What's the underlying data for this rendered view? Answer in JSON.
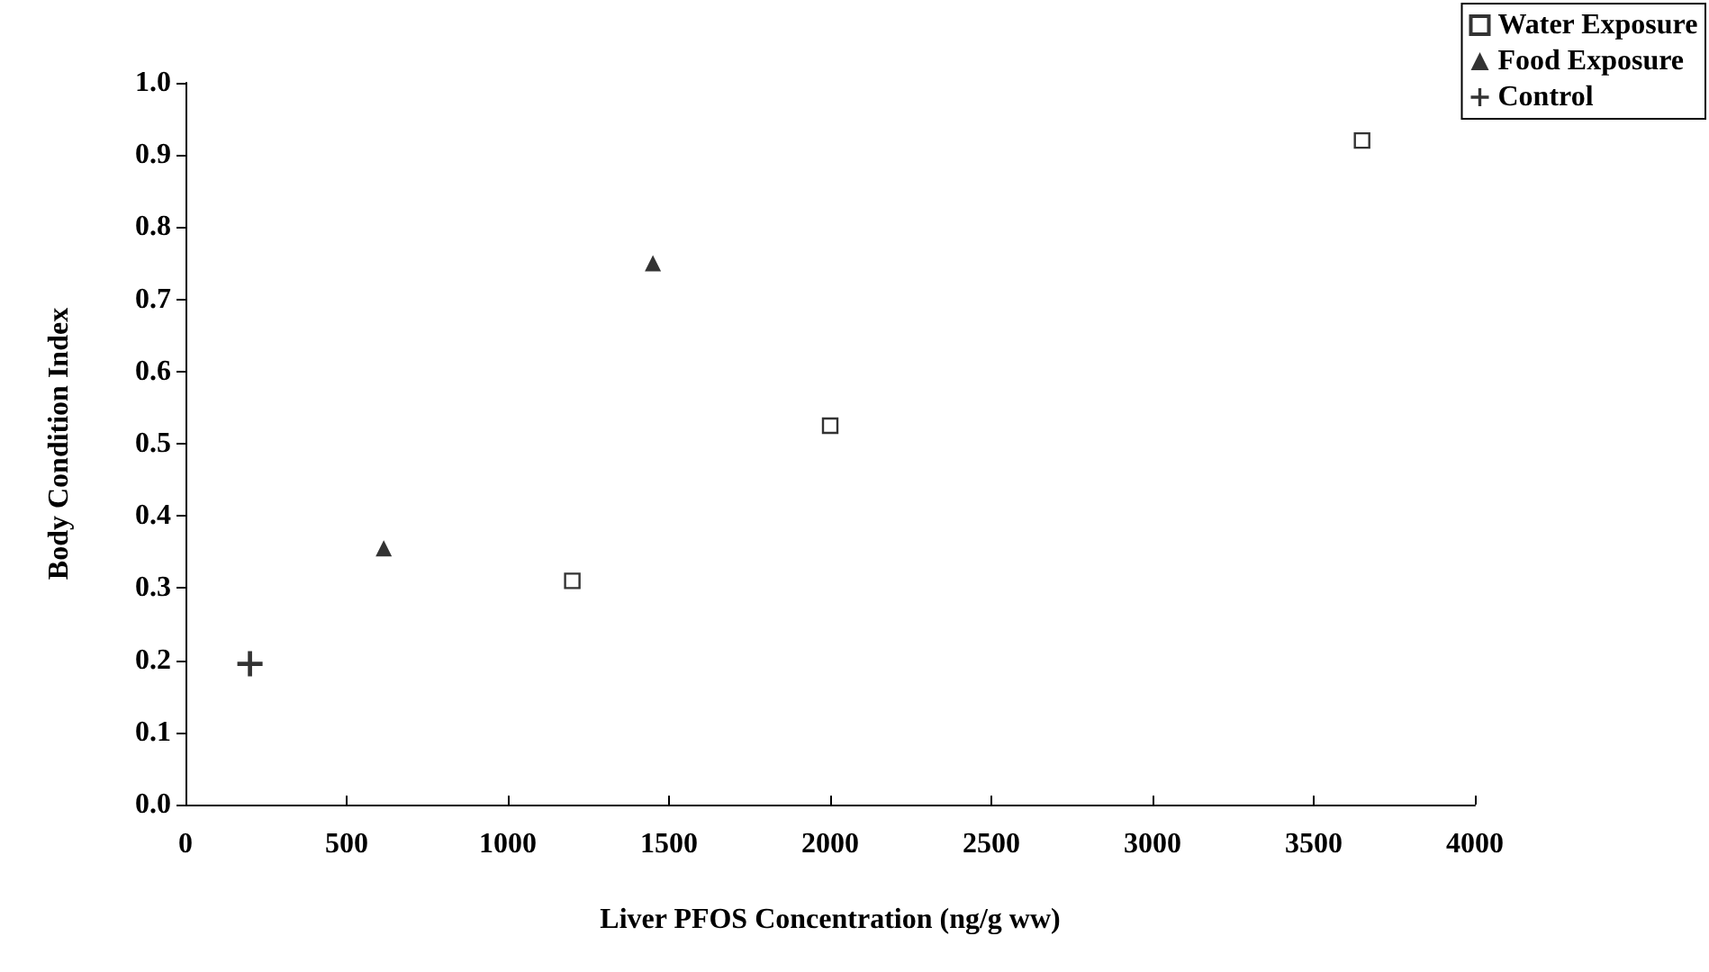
{
  "chart_data": {
    "type": "scatter",
    "xlabel": "Liver PFOS Concentration (ng/g ww)",
    "ylabel": "Body Condition Index",
    "series": [
      {
        "name": "Water Exposure",
        "color": "#000000",
        "marker": "square",
        "x": [
          1200,
          2000,
          3650
        ],
        "values": [
          0.31,
          0.525,
          0.92
        ]
      },
      {
        "name": "Food Exposure",
        "color": "#000000",
        "marker": "triangle",
        "x": [
          615,
          1450
        ],
        "values": [
          0.355,
          0.75
        ]
      },
      {
        "name": "Control",
        "color": "#000000",
        "marker": "cross",
        "x": [
          200
        ],
        "values": [
          0.195
        ]
      }
    ],
    "xlim": [
      0,
      4000
    ],
    "xticks": [
      0,
      500,
      1000,
      1500,
      2000,
      2500,
      3000,
      3500,
      4000
    ],
    "ylim": [
      0,
      1
    ],
    "yticks": [
      {
        "value": 0,
        "label": "0.0"
      },
      {
        "value": 0.1,
        "label": "0.1"
      },
      {
        "value": 0.2,
        "label": "0.2"
      },
      {
        "value": 0.3,
        "label": "0.3"
      },
      {
        "value": 0.4,
        "label": "0.4"
      },
      {
        "value": 0.5,
        "label": "0.5"
      },
      {
        "value": 0.6,
        "label": "0.6"
      },
      {
        "value": 0.7,
        "label": "0.7"
      },
      {
        "value": 0.8,
        "label": "0.8"
      },
      {
        "value": 0.9,
        "label": "0.9"
      },
      {
        "value": 1,
        "label": "1.0"
      }
    ],
    "grid": false,
    "legend": "top right"
  }
}
